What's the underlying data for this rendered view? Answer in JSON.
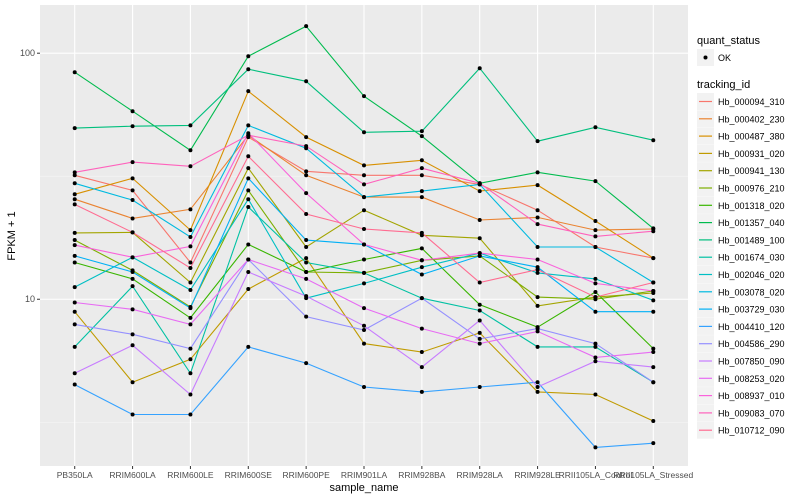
{
  "chart_data": {
    "type": "line",
    "xlabel": "sample_name",
    "ylabel": "FPKM + 1",
    "y_scale": "log10",
    "ylim": [
      2.1,
      157
    ],
    "y_ticks": [
      10,
      100
    ],
    "y_tick_labels": [
      "10",
      "100"
    ],
    "grid": true,
    "legend_position": "right",
    "categories": [
      "PB350LA",
      "RRIM600LA",
      "RRIM600LE",
      "RRIM600SE",
      "RRIM600PE",
      "RRIM901LA",
      "RRIM928BA",
      "RRIM928LA",
      "RRIM928LE",
      "RRII105LA_Control",
      "RRII105LA_Stressed"
    ],
    "point_legend": {
      "title": "quant_status",
      "entries": [
        "OK"
      ]
    },
    "line_legend_title": "tracking_id",
    "series": [
      {
        "name": "Hb_000094_310",
        "color": "#F8766D",
        "values": [
          31.9,
          27.7,
          14.1,
          45.6,
          33.1,
          31.9,
          31.9,
          29.3,
          23.0,
          16.3,
          14.7
        ]
      },
      {
        "name": "Hb_000402_230",
        "color": "#EA8331",
        "values": [
          25.5,
          21.3,
          23.2,
          46.4,
          31.9,
          26.0,
          26.0,
          21.0,
          21.5,
          19.1,
          19.3
        ]
      },
      {
        "name": "Hb_000487_380",
        "color": "#D89000",
        "values": [
          26.7,
          31.0,
          19.1,
          70.1,
          45.6,
          35.0,
          36.7,
          27.5,
          29.1,
          20.8,
          14.7
        ]
      },
      {
        "name": "Hb_000931_020",
        "color": "#C09B00",
        "values": [
          8.9,
          4.6,
          5.7,
          11.0,
          14.7,
          6.6,
          6.1,
          7.3,
          4.2,
          4.1,
          3.2
        ]
      },
      {
        "name": "Hb_000941_130",
        "color": "#A3A500",
        "values": [
          18.6,
          18.7,
          11.7,
          34.1,
          16.3,
          23.0,
          18.2,
          17.7,
          9.4,
          10.2,
          10.6
        ]
      },
      {
        "name": "Hb_000976_210",
        "color": "#7CAE00",
        "values": [
          17.4,
          13.1,
          9.3,
          27.7,
          12.9,
          12.8,
          14.4,
          15.0,
          10.2,
          10.0,
          10.8
        ]
      },
      {
        "name": "Hb_001318_020",
        "color": "#39B600",
        "values": [
          14.1,
          12.1,
          8.4,
          16.7,
          12.9,
          14.5,
          16.1,
          9.5,
          7.7,
          10.7,
          6.3
        ]
      },
      {
        "name": "Hb_001357_040",
        "color": "#00BB4E",
        "values": [
          83.7,
          58.1,
          40.3,
          97.2,
          128.8,
          66.9,
          46.0,
          29.6,
          32.8,
          30.2,
          19.4
        ]
      },
      {
        "name": "Hb_001489_100",
        "color": "#00BF7D",
        "values": [
          49.6,
          50.5,
          50.9,
          86.1,
          76.9,
          47.7,
          48.2,
          86.9,
          43.9,
          50.0,
          44.3
        ]
      },
      {
        "name": "Hb_001674_030",
        "color": "#00C1A3",
        "values": [
          6.4,
          11.3,
          5.0,
          23.7,
          14.1,
          12.8,
          10.1,
          9.0,
          6.4,
          6.4,
          4.6
        ]
      },
      {
        "name": "Hb_002046_020",
        "color": "#00BFC4",
        "values": [
          11.2,
          14.8,
          10.9,
          25.5,
          10.1,
          11.6,
          13.5,
          15.4,
          12.8,
          12.1,
          9.9
        ]
      },
      {
        "name": "Hb_003078_020",
        "color": "#00BAE0",
        "values": [
          29.6,
          25.3,
          17.9,
          50.9,
          41.1,
          26.0,
          27.5,
          29.3,
          16.3,
          16.3,
          11.7
        ]
      },
      {
        "name": "Hb_003729_030",
        "color": "#00B0F6",
        "values": [
          15.0,
          12.9,
          9.2,
          31.0,
          17.4,
          16.7,
          12.6,
          15.0,
          13.5,
          8.9,
          8.9
        ]
      },
      {
        "name": "Hb_004410_120",
        "color": "#35A2FF",
        "values": [
          4.5,
          3.4,
          3.4,
          6.4,
          5.5,
          4.4,
          4.2,
          4.4,
          4.6,
          2.5,
          2.6
        ]
      },
      {
        "name": "Hb_004586_290",
        "color": "#9590FF",
        "values": [
          7.9,
          7.2,
          6.3,
          14.5,
          8.5,
          7.5,
          10.1,
          6.9,
          7.6,
          6.6,
          4.6
        ]
      },
      {
        "name": "Hb_007850_090",
        "color": "#C77CFF",
        "values": [
          5.0,
          6.5,
          4.1,
          12.9,
          10.3,
          7.8,
          5.3,
          8.2,
          4.4,
          5.6,
          5.3
        ]
      },
      {
        "name": "Hb_008253_020",
        "color": "#E76BF3",
        "values": [
          9.7,
          9.1,
          7.9,
          14.5,
          12.1,
          9.2,
          7.6,
          6.6,
          7.4,
          5.8,
          6.1
        ]
      },
      {
        "name": "Hb_008937_010",
        "color": "#FA62DB",
        "values": [
          16.6,
          14.8,
          16.4,
          47.3,
          27.0,
          16.7,
          14.4,
          15.4,
          14.5,
          11.6,
          10.8
        ]
      },
      {
        "name": "Hb_009083_070",
        "color": "#FF62BC",
        "values": [
          32.8,
          36.1,
          34.7,
          46.4,
          41.9,
          29.3,
          34.1,
          29.6,
          20.2,
          18.0,
          18.9
        ]
      },
      {
        "name": "Hb_010712_090",
        "color": "#FF6C91",
        "values": [
          24.3,
          18.7,
          13.4,
          38.1,
          22.2,
          19.3,
          18.6,
          11.7,
          13.2,
          10.2,
          11.7
        ]
      }
    ]
  }
}
